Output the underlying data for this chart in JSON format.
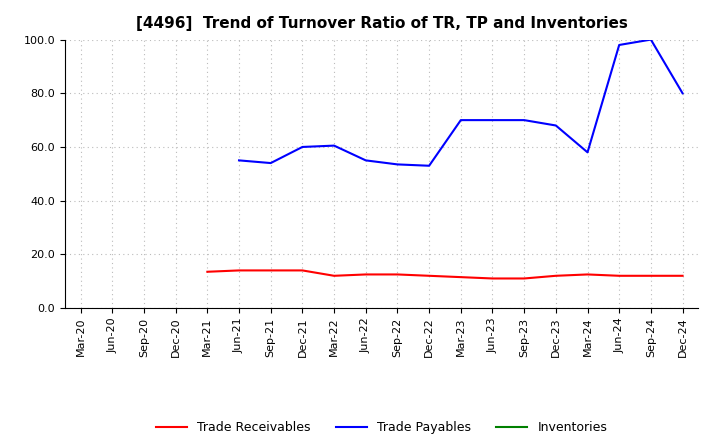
{
  "title": "[4496]  Trend of Turnover Ratio of TR, TP and Inventories",
  "x_labels": [
    "Mar-20",
    "Jun-20",
    "Sep-20",
    "Dec-20",
    "Mar-21",
    "Jun-21",
    "Sep-21",
    "Dec-21",
    "Mar-22",
    "Jun-22",
    "Sep-22",
    "Dec-22",
    "Mar-23",
    "Jun-23",
    "Sep-23",
    "Dec-23",
    "Mar-24",
    "Jun-24",
    "Sep-24",
    "Dec-24"
  ],
  "trade_receivables_x": [
    4,
    5,
    6,
    7,
    8,
    9,
    10,
    11,
    12,
    13,
    14,
    15,
    16,
    17,
    18,
    19
  ],
  "trade_receivables_y": [
    13.5,
    14.0,
    14.0,
    14.0,
    12.0,
    12.5,
    12.5,
    12.0,
    11.5,
    11.0,
    11.0,
    12.0,
    12.5,
    12.0,
    12.0,
    12.0
  ],
  "trade_payables_x": [
    5,
    6,
    7,
    8,
    9,
    10,
    11,
    12,
    13,
    14,
    15,
    16,
    17,
    18,
    19
  ],
  "trade_payables_y": [
    55.0,
    54.0,
    60.0,
    60.5,
    55.0,
    53.5,
    53.0,
    70.0,
    70.0,
    70.0,
    68.0,
    58.0,
    98.0,
    100.0,
    80.0
  ],
  "inventories_x": [],
  "inventories_y": [],
  "ylim": [
    0.0,
    100.0
  ],
  "yticks": [
    0.0,
    20.0,
    40.0,
    60.0,
    80.0,
    100.0
  ],
  "color_tr": "#ff0000",
  "color_tp": "#0000ff",
  "color_inv": "#008000",
  "bg_color": "#ffffff",
  "grid_color": "#bbbbbb",
  "title_fontsize": 11,
  "legend_fontsize": 9,
  "tick_fontsize": 8
}
